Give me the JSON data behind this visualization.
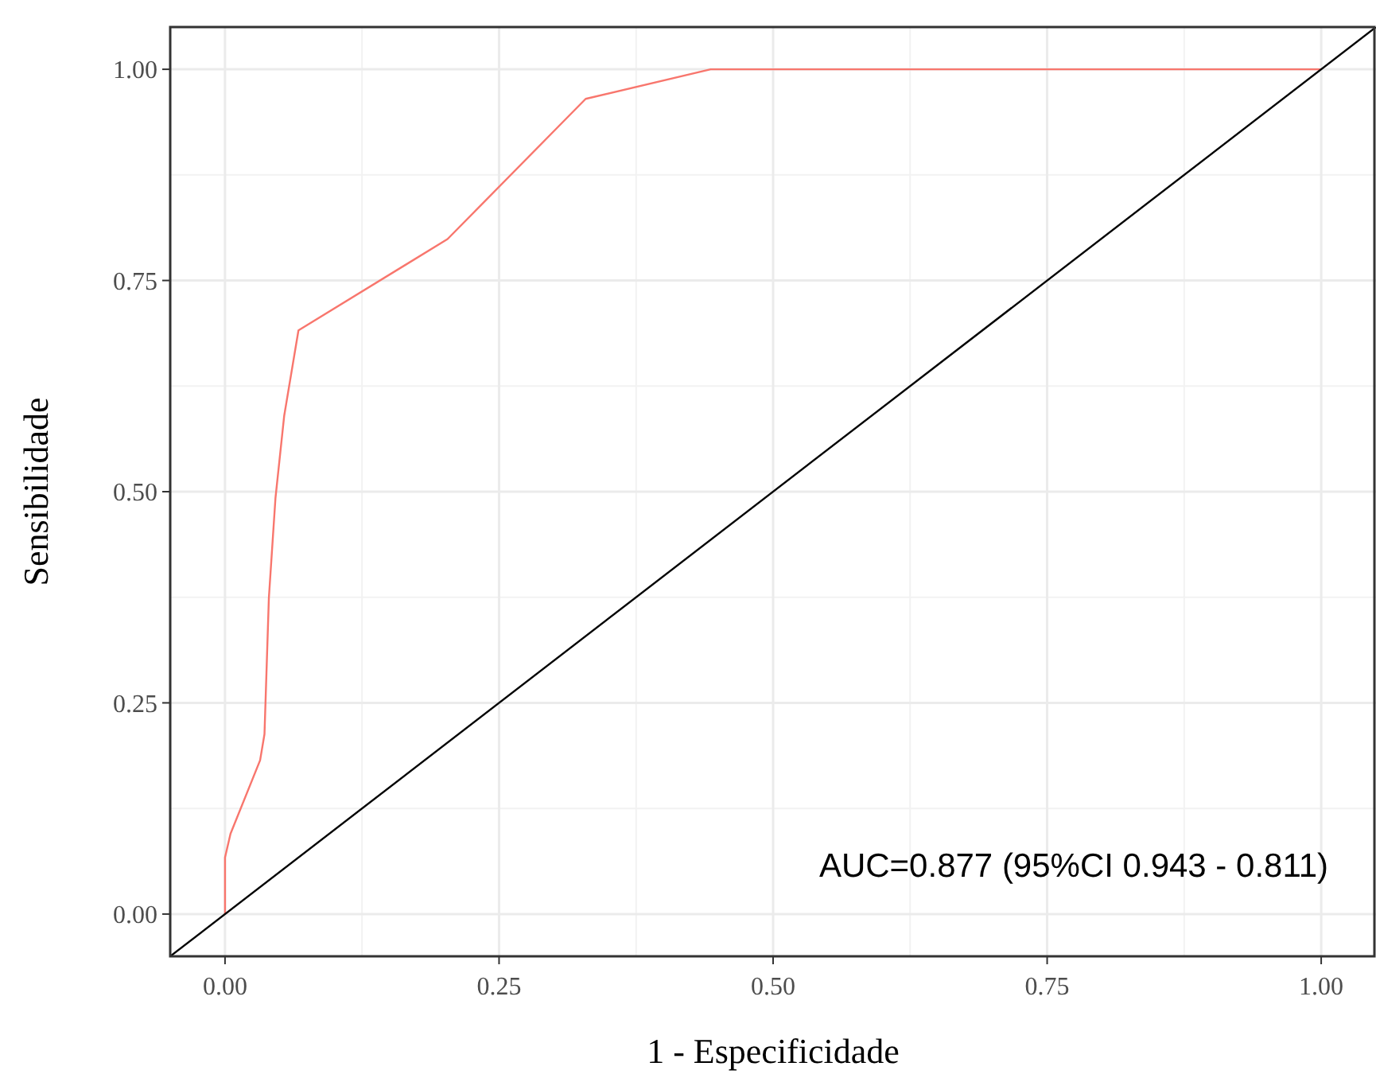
{
  "chart_data": {
    "type": "line",
    "xlabel": "1 - Especificidade",
    "ylabel": "Sensibilidade",
    "xlim": [
      -0.05,
      1.05
    ],
    "ylim": [
      -0.05,
      1.05
    ],
    "xticks": [
      {
        "value": 0,
        "label": "0.00"
      },
      {
        "value": 0.25,
        "label": "0.25"
      },
      {
        "value": 0.5,
        "label": "0.50"
      },
      {
        "value": 0.75,
        "label": "0.75"
      },
      {
        "value": 1,
        "label": "1.00"
      }
    ],
    "yticks": [
      {
        "value": 0,
        "label": "0.00"
      },
      {
        "value": 0.25,
        "label": "0.25"
      },
      {
        "value": 0.5,
        "label": "0.50"
      },
      {
        "value": 0.75,
        "label": "0.75"
      },
      {
        "value": 1,
        "label": "1.00"
      }
    ],
    "grid": true,
    "line_style": "solid",
    "marker": "none",
    "series": [
      {
        "color": "#f8766d",
        "x": [
          0,
          0,
          0.005,
          0.032,
          0.036,
          0.04,
          0.046,
          0.054,
          0.067,
          0.203,
          0.329,
          0.443,
          1
        ],
        "values": [
          0,
          0.067,
          0.095,
          0.182,
          0.213,
          0.374,
          0.492,
          0.59,
          0.691,
          0.799,
          0.965,
          1,
          1
        ]
      },
      {
        "color": "#000000",
        "x": [
          -0.05,
          1.05
        ],
        "values": [
          -0.05,
          1.05
        ]
      }
    ],
    "annotations": [
      "AUC=0.877 (95%CI 0.943 - 0.811)"
    ]
  }
}
